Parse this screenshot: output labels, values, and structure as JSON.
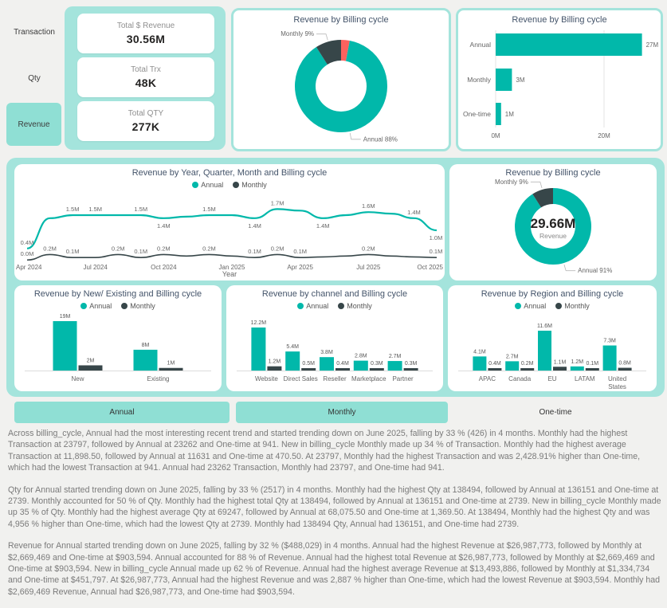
{
  "colors": {
    "annual": "#01B8AA",
    "monthly": "#374649",
    "onetime": "#FD625E",
    "container_teal": "#A4E4DC",
    "button_teal": "#8FDFD4",
    "title": "#44546A",
    "text_gray": "#7A7A7A"
  },
  "sidebar": {
    "items": [
      {
        "label": "Transaction",
        "active": false
      },
      {
        "label": "Qty",
        "active": false
      },
      {
        "label": "Revenue",
        "active": true
      }
    ]
  },
  "kpis": [
    {
      "label": "Total $ Revenue",
      "value": "30.56M"
    },
    {
      "label": "Total Trx",
      "value": "48K"
    },
    {
      "label": "Total QTY",
      "value": "277K"
    }
  ],
  "filters": {
    "buttons": [
      {
        "label": "Annual",
        "selected": true
      },
      {
        "label": "Monthly",
        "selected": true
      },
      {
        "label": "One-time",
        "selected": false
      }
    ]
  },
  "chart_data": [
    {
      "id": "donut-billing-top",
      "type": "pie",
      "title": "Revenue by Billing cycle",
      "slices": [
        {
          "name": "One-time",
          "pct": 3,
          "color": "#FD625E"
        },
        {
          "name": "Annual",
          "pct": 88,
          "color": "#01B8AA",
          "label": "Annual 88%"
        },
        {
          "name": "Monthly",
          "pct": 9,
          "color": "#374649",
          "label": "Monthly 9%"
        }
      ]
    },
    {
      "id": "hbar-billing",
      "type": "bar",
      "orientation": "horizontal",
      "title": "Revenue by Billing cycle",
      "categories": [
        "Annual",
        "Monthly",
        "One-time"
      ],
      "values": [
        27,
        3,
        1
      ],
      "value_labels": [
        "27M",
        "3M",
        "1M"
      ],
      "color": "#01B8AA",
      "x_ticks": [
        "0M",
        "20M"
      ],
      "x_tick_values": [
        0,
        20
      ]
    },
    {
      "id": "line-trend",
      "type": "line",
      "title": "Revenue by Year, Quarter, Month and Billing cycle",
      "xlabel": "Year",
      "months": 19,
      "x_ticks": [
        "Apr 2024",
        "Jul 2024",
        "Oct 2024",
        "Jan 2025",
        "Apr 2025",
        "Jul 2025",
        "Oct 2025"
      ],
      "x_tick_idx": [
        0,
        3,
        6,
        9,
        12,
        15,
        18
      ],
      "series": [
        {
          "name": "Annual",
          "color": "#01B8AA",
          "values": [
            0.4,
            1.4,
            1.5,
            1.5,
            1.5,
            1.5,
            1.4,
            1.45,
            1.5,
            1.5,
            1.4,
            1.7,
            1.65,
            1.4,
            1.5,
            1.6,
            1.55,
            1.4,
            1.0
          ],
          "labels": [
            {
              "i": 0,
              "t": "0.4M",
              "pos": "above"
            },
            {
              "i": 2,
              "t": "1.5M",
              "pos": "above"
            },
            {
              "i": 3,
              "t": "1.5M",
              "pos": "above"
            },
            {
              "i": 5,
              "t": "1.5M",
              "pos": "above"
            },
            {
              "i": 6,
              "t": "1.4M",
              "pos": "below"
            },
            {
              "i": 8,
              "t": "1.5M",
              "pos": "above"
            },
            {
              "i": 10,
              "t": "1.4M",
              "pos": "below"
            },
            {
              "i": 11,
              "t": "1.7M",
              "pos": "above"
            },
            {
              "i": 13,
              "t": "1.4M",
              "pos": "below"
            },
            {
              "i": 15,
              "t": "1.6M",
              "pos": "above"
            },
            {
              "i": 17,
              "t": "1.4M",
              "pos": "above"
            },
            {
              "i": 18,
              "t": "1.0M",
              "pos": "below"
            }
          ]
        },
        {
          "name": "Monthly",
          "color": "#374649",
          "values": [
            0.02,
            0.2,
            0.1,
            0.1,
            0.2,
            0.1,
            0.2,
            0.15,
            0.2,
            0.15,
            0.1,
            0.2,
            0.1,
            0.12,
            0.15,
            0.2,
            0.15,
            0.12,
            0.1
          ],
          "labels": [
            {
              "i": 0,
              "t": "0.0M",
              "pos": "above"
            },
            {
              "i": 1,
              "t": "0.2M",
              "pos": "above"
            },
            {
              "i": 2,
              "t": "0.1M",
              "pos": "above"
            },
            {
              "i": 4,
              "t": "0.2M",
              "pos": "above"
            },
            {
              "i": 5,
              "t": "0.1M",
              "pos": "above"
            },
            {
              "i": 6,
              "t": "0.2M",
              "pos": "above"
            },
            {
              "i": 8,
              "t": "0.2M",
              "pos": "above"
            },
            {
              "i": 10,
              "t": "0.1M",
              "pos": "above"
            },
            {
              "i": 11,
              "t": "0.2M",
              "pos": "above"
            },
            {
              "i": 12,
              "t": "0.1M",
              "pos": "above"
            },
            {
              "i": 15,
              "t": "0.2M",
              "pos": "above"
            },
            {
              "i": 18,
              "t": "0.1M",
              "pos": "above"
            }
          ]
        }
      ]
    },
    {
      "id": "donut-billing-mid",
      "type": "pie",
      "title": "Revenue by Billing cycle",
      "center_value": "29.66M",
      "center_label": "Revenue",
      "slices": [
        {
          "name": "Annual",
          "pct": 91,
          "color": "#01B8AA",
          "label": "Annual 91%"
        },
        {
          "name": "Monthly",
          "pct": 9,
          "color": "#374649",
          "label": "Monthly 9%"
        }
      ]
    },
    {
      "id": "bar-newexisting",
      "type": "bar",
      "title": "Revenue by New/ Existing and Billing cycle",
      "categories": [
        "New",
        "Existing"
      ],
      "series": [
        {
          "name": "Annual",
          "color": "#01B8AA",
          "values": [
            19,
            8
          ],
          "value_labels": [
            "19M",
            "8M"
          ]
        },
        {
          "name": "Monthly",
          "color": "#374649",
          "values": [
            2,
            1
          ],
          "value_labels": [
            "2M",
            "1M"
          ]
        }
      ]
    },
    {
      "id": "bar-channel",
      "type": "bar",
      "title": "Revenue by channel and Billing cycle",
      "categories": [
        "Website",
        "Direct Sales",
        "Reseller",
        "Marketplace",
        "Partner"
      ],
      "series": [
        {
          "name": "Annual",
          "color": "#01B8AA",
          "values": [
            12.2,
            5.4,
            3.8,
            2.8,
            2.7
          ],
          "value_labels": [
            "12.2M",
            "5.4M",
            "3.8M",
            "2.8M",
            "2.7M"
          ]
        },
        {
          "name": "Monthly",
          "color": "#374649",
          "values": [
            1.2,
            0.5,
            0.4,
            0.3,
            0.3
          ],
          "value_labels": [
            "1.2M",
            "0.5M",
            "0.4M",
            "0.3M",
            "0.3M"
          ]
        }
      ]
    },
    {
      "id": "bar-region",
      "type": "bar",
      "title": "Revenue by Region and Billing cycle",
      "categories": [
        "APAC",
        "Canada",
        "EU",
        "LATAM",
        "United States"
      ],
      "series": [
        {
          "name": "Annual",
          "color": "#01B8AA",
          "values": [
            4.1,
            2.7,
            11.6,
            1.2,
            7.3
          ],
          "value_labels": [
            "4.1M",
            "2.7M",
            "11.6M",
            "1.2M",
            "7.3M"
          ]
        },
        {
          "name": "Monthly",
          "color": "#374649",
          "values": [
            0.4,
            0.2,
            1.1,
            0.1,
            0.8
          ],
          "value_labels": [
            "0.4M",
            "0.2M",
            "1.1M",
            "0.1M",
            "0.8M"
          ]
        }
      ]
    }
  ],
  "narrative": {
    "p1": "Across billing_cycle, Annual had the most interesting recent trend and started trending down on June 2025, falling by 33 % (426) in 4 months. Monthly had the highest Transaction at 23797, followed by Annual at 23262 and One-time at 941. New in billing_cycle Monthly made up 34 % of Transaction. Monthly had the highest average Transaction at 11,898.50, followed by Annual at 11631 and One-time at 470.50. At 23797, Monthly had the highest Transaction and was 2,428.91% higher than One-time, which had the lowest Transaction at 941. Annual had 23262 Transaction, Monthly had 23797, and One-time had 941.",
    "p2": "Qty for Annual started trending down on June 2025, falling by 33 % (2517) in 4 months. Monthly had the highest Qty at 138494, followed by Annual at 136151 and One-time at 2739. Monthly accounted for 50 % of Qty. Monthly had the highest total Qty at 138494, followed by Annual at 136151 and One-time at 2739. New in billing_cycle Monthly made up 35 % of Qty. Monthly had the highest average Qty at 69247, followed by Annual at 68,075.50 and One-time at 1,369.50. At 138494, Monthly had the highest Qty and was 4,956 % higher than One-time, which had the lowest Qty at 2739. Monthly had 138494 Qty, Annual had 136151, and One-time had 2739.",
    "p3": "Revenue for Annual started trending down on June 2025, falling by 32 % ($488,029) in 4 months. Annual had the highest Revenue at $26,987,773, followed by Monthly at $2,669,469 and One-time at $903,594. Annual accounted for 88 % of Revenue. Annual had the highest total Revenue at $26,987,773, followed by Monthly at $2,669,469 and One-time at $903,594. New in billing_cycle Annual made up 62 % of Revenue. Annual had the highest average Revenue at $13,493,886, followed by Monthly at $1,334,734 and One-time at $451,797. At $26,987,773, Annual had the highest Revenue and was 2,887 % higher than One-time, which had the lowest Revenue at $903,594. Monthly had $2,669,469 Revenue, Annual had $26,987,773, and One-time had $903,594."
  }
}
